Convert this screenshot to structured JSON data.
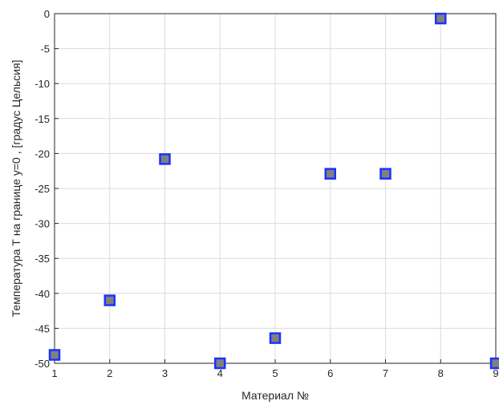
{
  "chart_data": {
    "type": "scatter",
    "xlabel": "Материал №",
    "ylabel": "Температура Т на границе у=0 , [градус Цельсия]",
    "xlim": [
      1,
      9
    ],
    "ylim": [
      -50,
      0
    ],
    "grid": true,
    "x_ticks": [
      "1",
      "2",
      "3",
      "4",
      "5",
      "6",
      "7",
      "8",
      "9"
    ],
    "y_ticks": [
      "0",
      "-5",
      "-10",
      "-15",
      "-20",
      "-25",
      "-30",
      "-35",
      "-40",
      "-45",
      "-50"
    ],
    "marker": {
      "shape": "square",
      "fill": "#808080",
      "edge": "#1a33ff"
    },
    "points": [
      {
        "x": 1,
        "y": -48.8
      },
      {
        "x": 2,
        "y": -41.0
      },
      {
        "x": 3,
        "y": -20.8
      },
      {
        "x": 4,
        "y": -50.0
      },
      {
        "x": 5,
        "y": -46.4
      },
      {
        "x": 6,
        "y": -22.9
      },
      {
        "x": 7,
        "y": -22.9
      },
      {
        "x": 8,
        "y": -0.7
      },
      {
        "x": 9,
        "y": -50.0
      }
    ]
  }
}
